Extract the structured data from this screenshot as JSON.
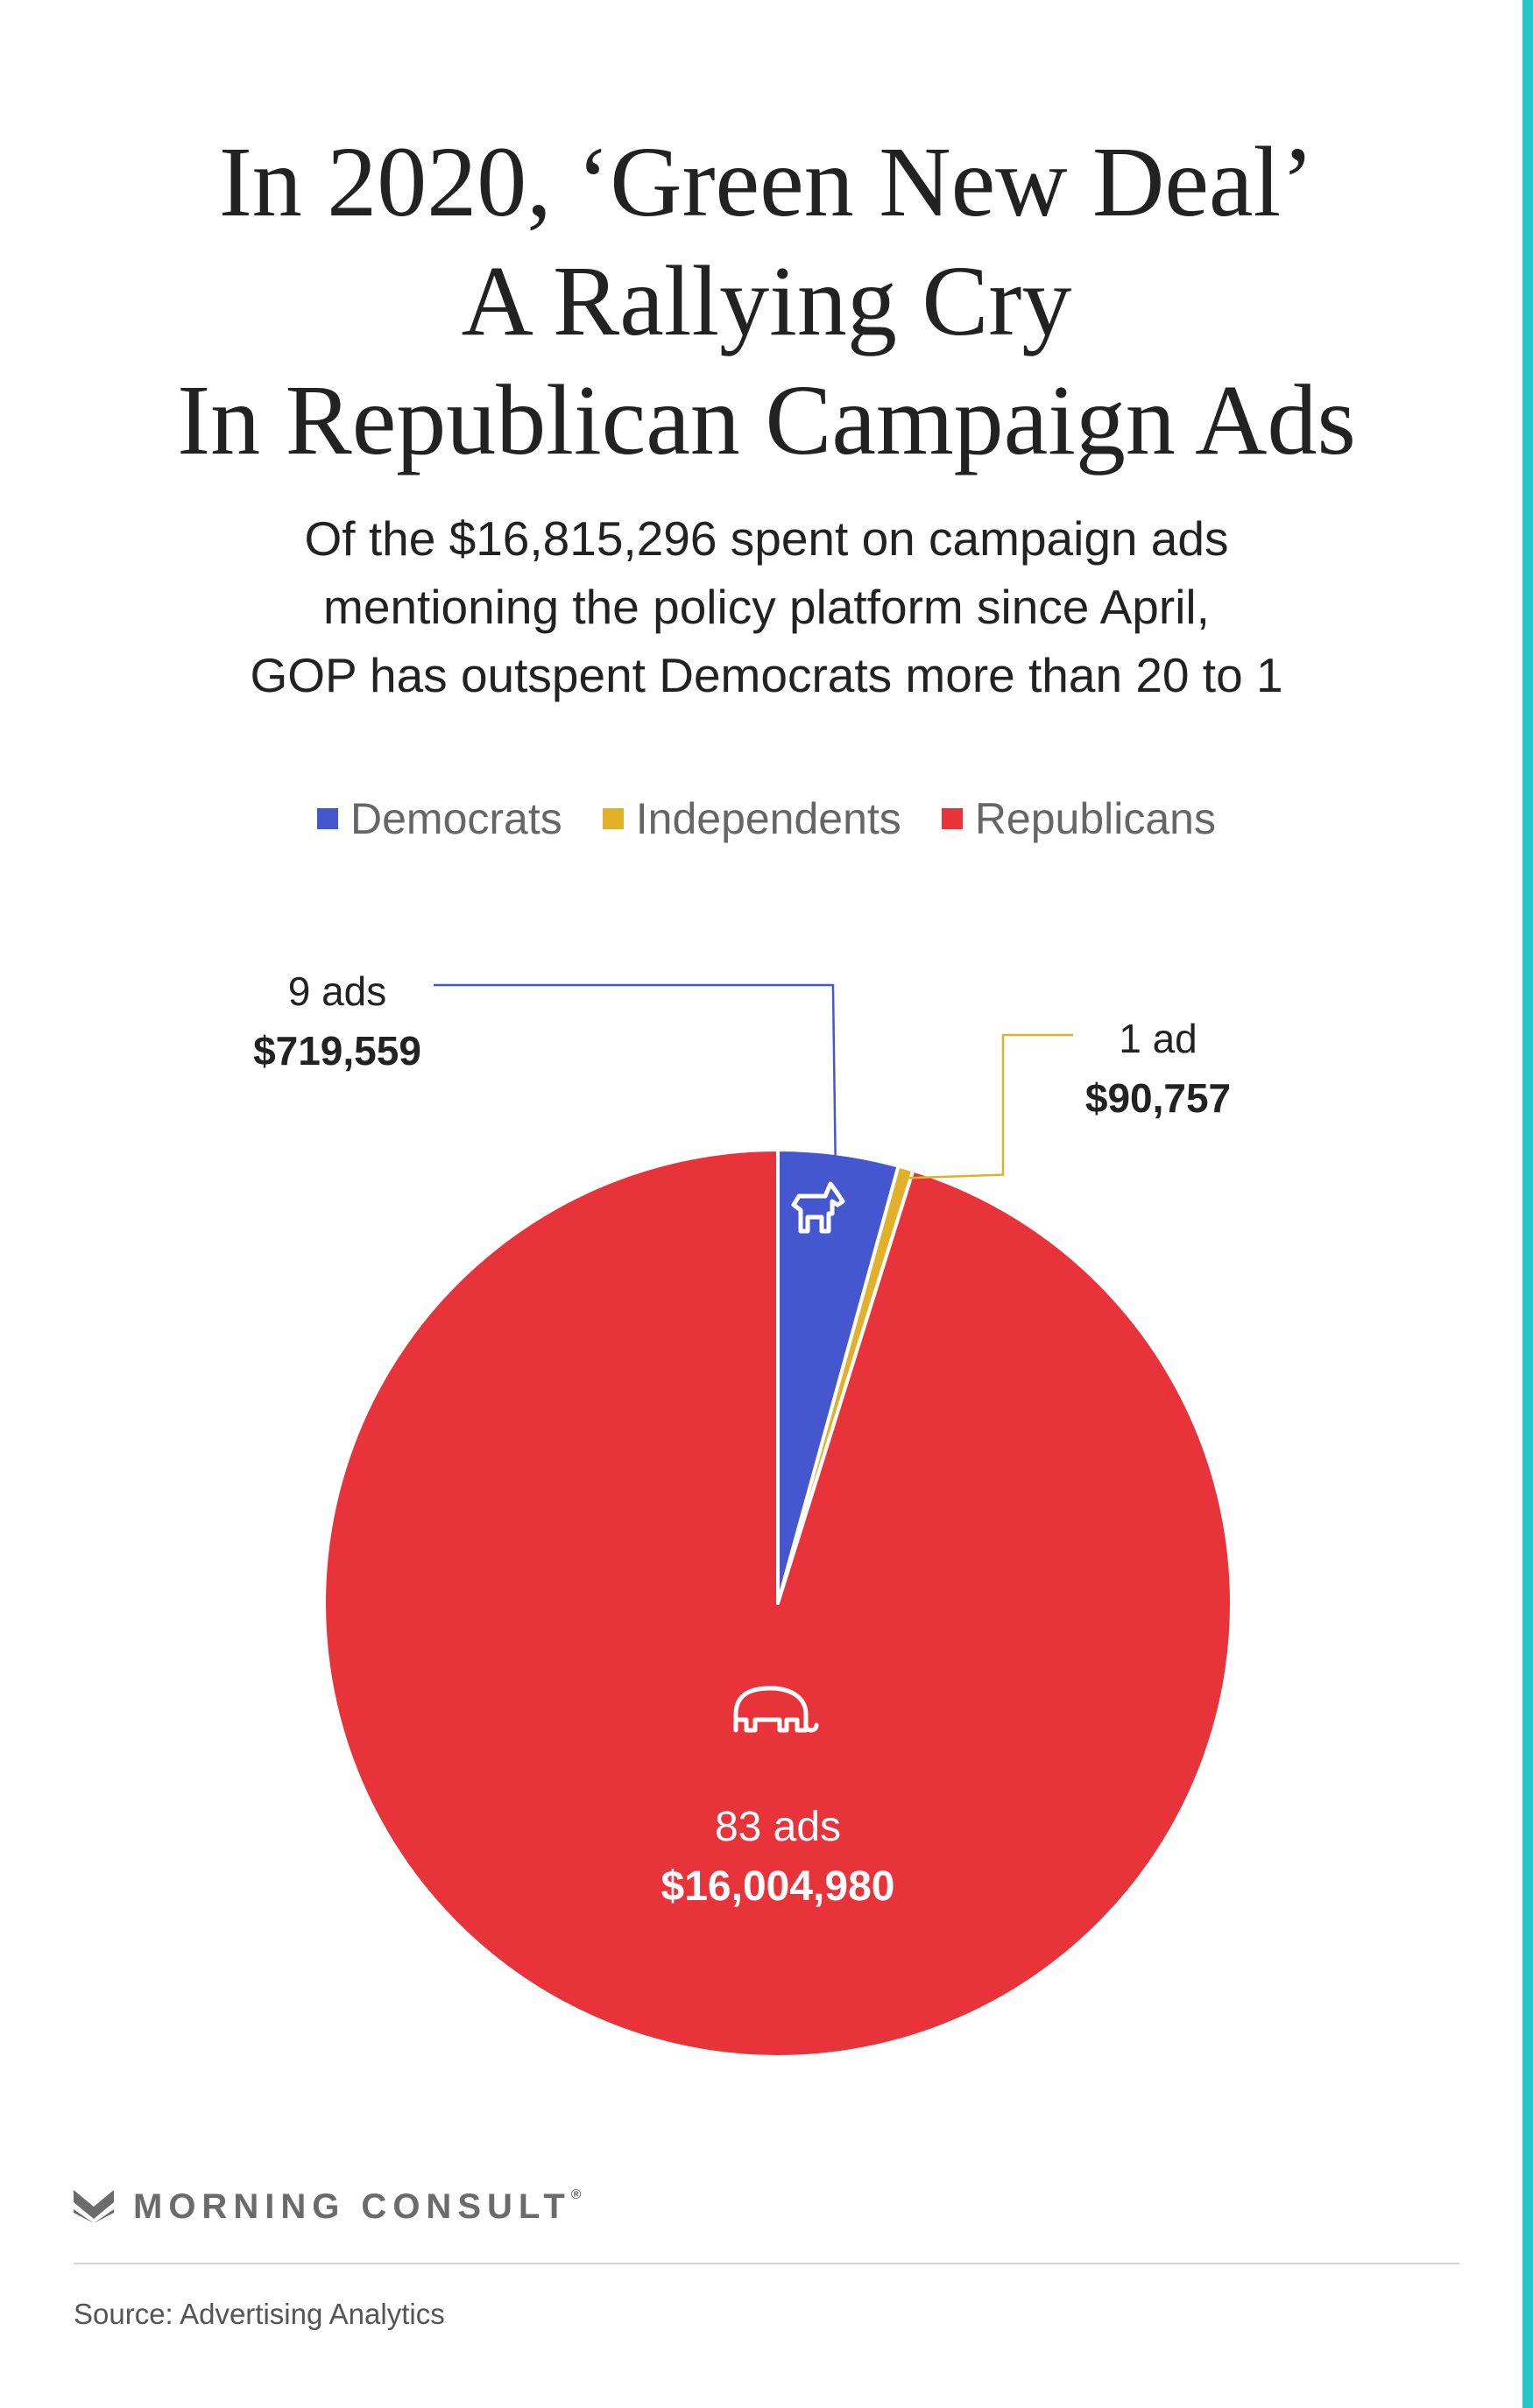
{
  "title_lines": [
    "In 2020, ‘Green New Deal’",
    "A Rallying Cry",
    "In Republican Campaign Ads"
  ],
  "subtitle_lines": [
    "Of the $16,815,296 spent on campaign ads",
    "mentioning the policy platform since April,",
    "GOP has outspent Democrats more than 20 to 1"
  ],
  "colors": {
    "accent_bar": "#26c6c9",
    "democrats": "#4457cf",
    "independents": "#e3b02a",
    "republicans": "#e8333a",
    "text": "#222222"
  },
  "legend": [
    {
      "label": "Democrats",
      "color": "#4457cf"
    },
    {
      "label": "Independents",
      "color": "#e3b02a"
    },
    {
      "label": "Republicans",
      "color": "#e8333a"
    }
  ],
  "chart_data": {
    "type": "pie",
    "title": "In 2020, ‘Green New Deal’ A Rallying Cry In Republican Campaign Ads",
    "legend_position": "top",
    "start": "top",
    "direction": "clockwise",
    "slices": [
      {
        "name": "Democrats",
        "value": 719559,
        "ads_label": "9 ads",
        "spend_label": "$719,559",
        "color": "#4457cf",
        "icon": "donkey-icon"
      },
      {
        "name": "Independents",
        "value": 90757,
        "ads_label": "1 ad",
        "spend_label": "$90,757",
        "color": "#e3b02a",
        "icon": ""
      },
      {
        "name": "Republicans",
        "value": 16004980,
        "ads_label": "83 ads",
        "spend_label": "$16,004,980",
        "color": "#e8333a",
        "icon": "elephant-icon"
      }
    ],
    "total": 16815296
  },
  "brand": {
    "logo_icon": "morning-consult-m-icon",
    "name": "MORNING CONSULT",
    "registered_mark": "®"
  },
  "source": "Source: Advertising Analytics"
}
